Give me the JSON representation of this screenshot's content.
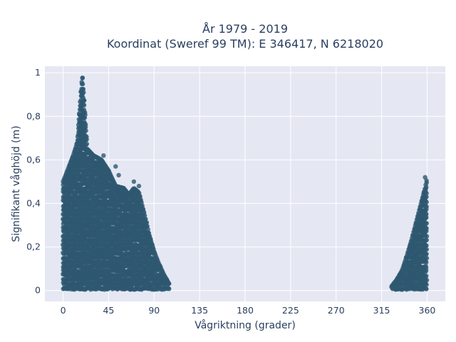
{
  "chart_data": {
    "type": "scatter",
    "title_line1": "År 1979 - 2019",
    "title_line2": "Koordinat (Sweref 99 TM): E 346417, N 6218020",
    "xlabel": "Vågriktning (grader)",
    "ylabel": "Signifikant våghöjd (m)",
    "xlim": [
      -18,
      378
    ],
    "ylim": [
      -0.05,
      1.03
    ],
    "x_ticks": [
      0,
      45,
      90,
      135,
      180,
      225,
      270,
      315,
      360
    ],
    "x_tick_labels": [
      "0",
      "45",
      "90",
      "135",
      "180",
      "225",
      "270",
      "315",
      "360"
    ],
    "y_ticks": [
      0,
      0.2,
      0.4,
      0.6,
      0.8,
      1
    ],
    "y_tick_labels": [
      "0",
      "0,2",
      "0,4",
      "0,6",
      "0,8",
      "1"
    ],
    "grid": true,
    "colors": {
      "marker": "#2e5770",
      "plot_bg": "#e5e8f3",
      "grid": "#ffffff",
      "text": "#2a3f5f"
    },
    "series": [
      {
        "envelope": [
          [
            0,
            0.5
          ],
          [
            5,
            0.56
          ],
          [
            10,
            0.62
          ],
          [
            14,
            0.68
          ],
          [
            17,
            0.88
          ],
          [
            19,
            0.99
          ],
          [
            21,
            0.86
          ],
          [
            24,
            0.65
          ],
          [
            30,
            0.62
          ],
          [
            38,
            0.6
          ],
          [
            45,
            0.55
          ],
          [
            52,
            0.48
          ],
          [
            60,
            0.47
          ],
          [
            65,
            0.44
          ],
          [
            70,
            0.47
          ],
          [
            75,
            0.45
          ],
          [
            80,
            0.36
          ],
          [
            85,
            0.26
          ],
          [
            90,
            0.18
          ],
          [
            95,
            0.12
          ],
          [
            100,
            0.07
          ],
          [
            105,
            0.03
          ]
        ]
      },
      {
        "envelope": [
          [
            325,
            0.02
          ],
          [
            330,
            0.05
          ],
          [
            335,
            0.09
          ],
          [
            340,
            0.16
          ],
          [
            345,
            0.24
          ],
          [
            350,
            0.33
          ],
          [
            355,
            0.42
          ],
          [
            358,
            0.47
          ],
          [
            360,
            0.52
          ]
        ]
      }
    ],
    "outliers": [
      [
        40,
        0.62
      ],
      [
        45,
        0.55
      ],
      [
        55,
        0.53
      ],
      [
        75,
        0.48
      ],
      [
        70,
        0.5
      ],
      [
        52,
        0.57
      ],
      [
        358,
        0.52
      ]
    ]
  }
}
